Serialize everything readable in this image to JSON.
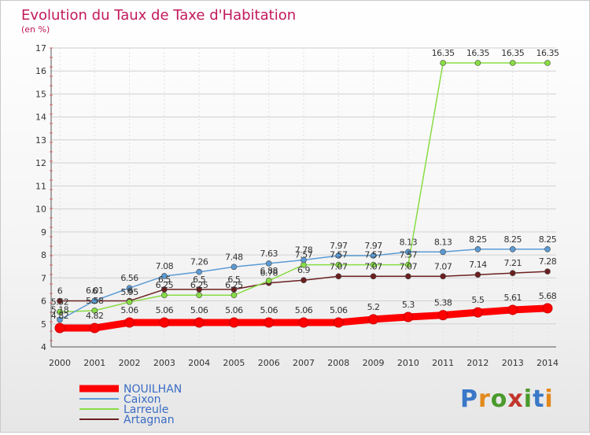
{
  "chart_data": {
    "type": "line",
    "title": "Evolution du Taux de Taxe d'Habitation",
    "subtitle": "(en %)",
    "xlabel": "",
    "ylabel": "",
    "x": [
      "2000",
      "2001",
      "2002",
      "2003",
      "2004",
      "2005",
      "2006",
      "2007",
      "2008",
      "2009",
      "2010",
      "2011",
      "2012",
      "2013",
      "2014"
    ],
    "ylim": [
      4,
      17
    ],
    "yticks": [
      4,
      5,
      6,
      7,
      8,
      9,
      10,
      11,
      12,
      13,
      14,
      15,
      16,
      17
    ],
    "grid": true,
    "legend_position": "bottom-left",
    "series": [
      {
        "name": "NOUILHAN",
        "color": "#ff0000",
        "values": [
          4.82,
          4.82,
          5.06,
          5.06,
          5.06,
          5.06,
          5.06,
          5.06,
          5.06,
          5.2,
          5.3,
          5.38,
          5.5,
          5.61,
          5.68
        ],
        "labels": [
          "4.82",
          "4.82",
          "5.06",
          "5.06",
          "5.06",
          "5.06",
          "5.06",
          "5.06",
          "5.06",
          "5.2",
          "5.3",
          "5.38",
          "5.5",
          "5.61",
          "5.68"
        ]
      },
      {
        "name": "Caixon",
        "color": "#5b9bd5",
        "values": [
          5.18,
          6.01,
          6.56,
          7.08,
          7.26,
          7.48,
          7.63,
          7.78,
          7.97,
          7.97,
          8.13,
          8.13,
          8.25,
          8.25,
          8.25
        ],
        "labels": [
          "5.18",
          "6.01",
          "6.56",
          "7.08",
          "7.26",
          "7.48",
          "7.63",
          "7.78",
          "7.97",
          "7.97",
          "8.13",
          "8.13",
          "8.25",
          "8.25",
          "8.25"
        ]
      },
      {
        "name": "Larreule",
        "color": "#88dd44",
        "values": [
          5.52,
          5.58,
          5.95,
          6.25,
          6.25,
          6.25,
          6.88,
          7.57,
          7.57,
          7.57,
          7.57,
          16.35,
          16.35,
          16.35,
          16.35
        ],
        "labels": [
          "5.52",
          "5.58",
          "5.95",
          "6.25",
          "6.25",
          "6.25",
          "6.88",
          "7.57",
          "7.57",
          "7.57",
          "7.57",
          "16.35",
          "16.35",
          "16.35",
          "16.35"
        ]
      },
      {
        "name": "Artagnan",
        "color": "#6b1f1f",
        "values": [
          6,
          6,
          6,
          6.5,
          6.5,
          6.5,
          6.78,
          6.9,
          7.07,
          7.07,
          7.07,
          7.07,
          7.14,
          7.21,
          7.28
        ],
        "labels": [
          "6",
          "6",
          "6",
          "6.5",
          "6.5",
          "6.5",
          "6.78",
          "6.9",
          "7.07",
          "7.07",
          "7.07",
          "7.07",
          "7.14",
          "7.21",
          "7.28"
        ]
      }
    ]
  },
  "logo": {
    "text": "Proxiti"
  }
}
